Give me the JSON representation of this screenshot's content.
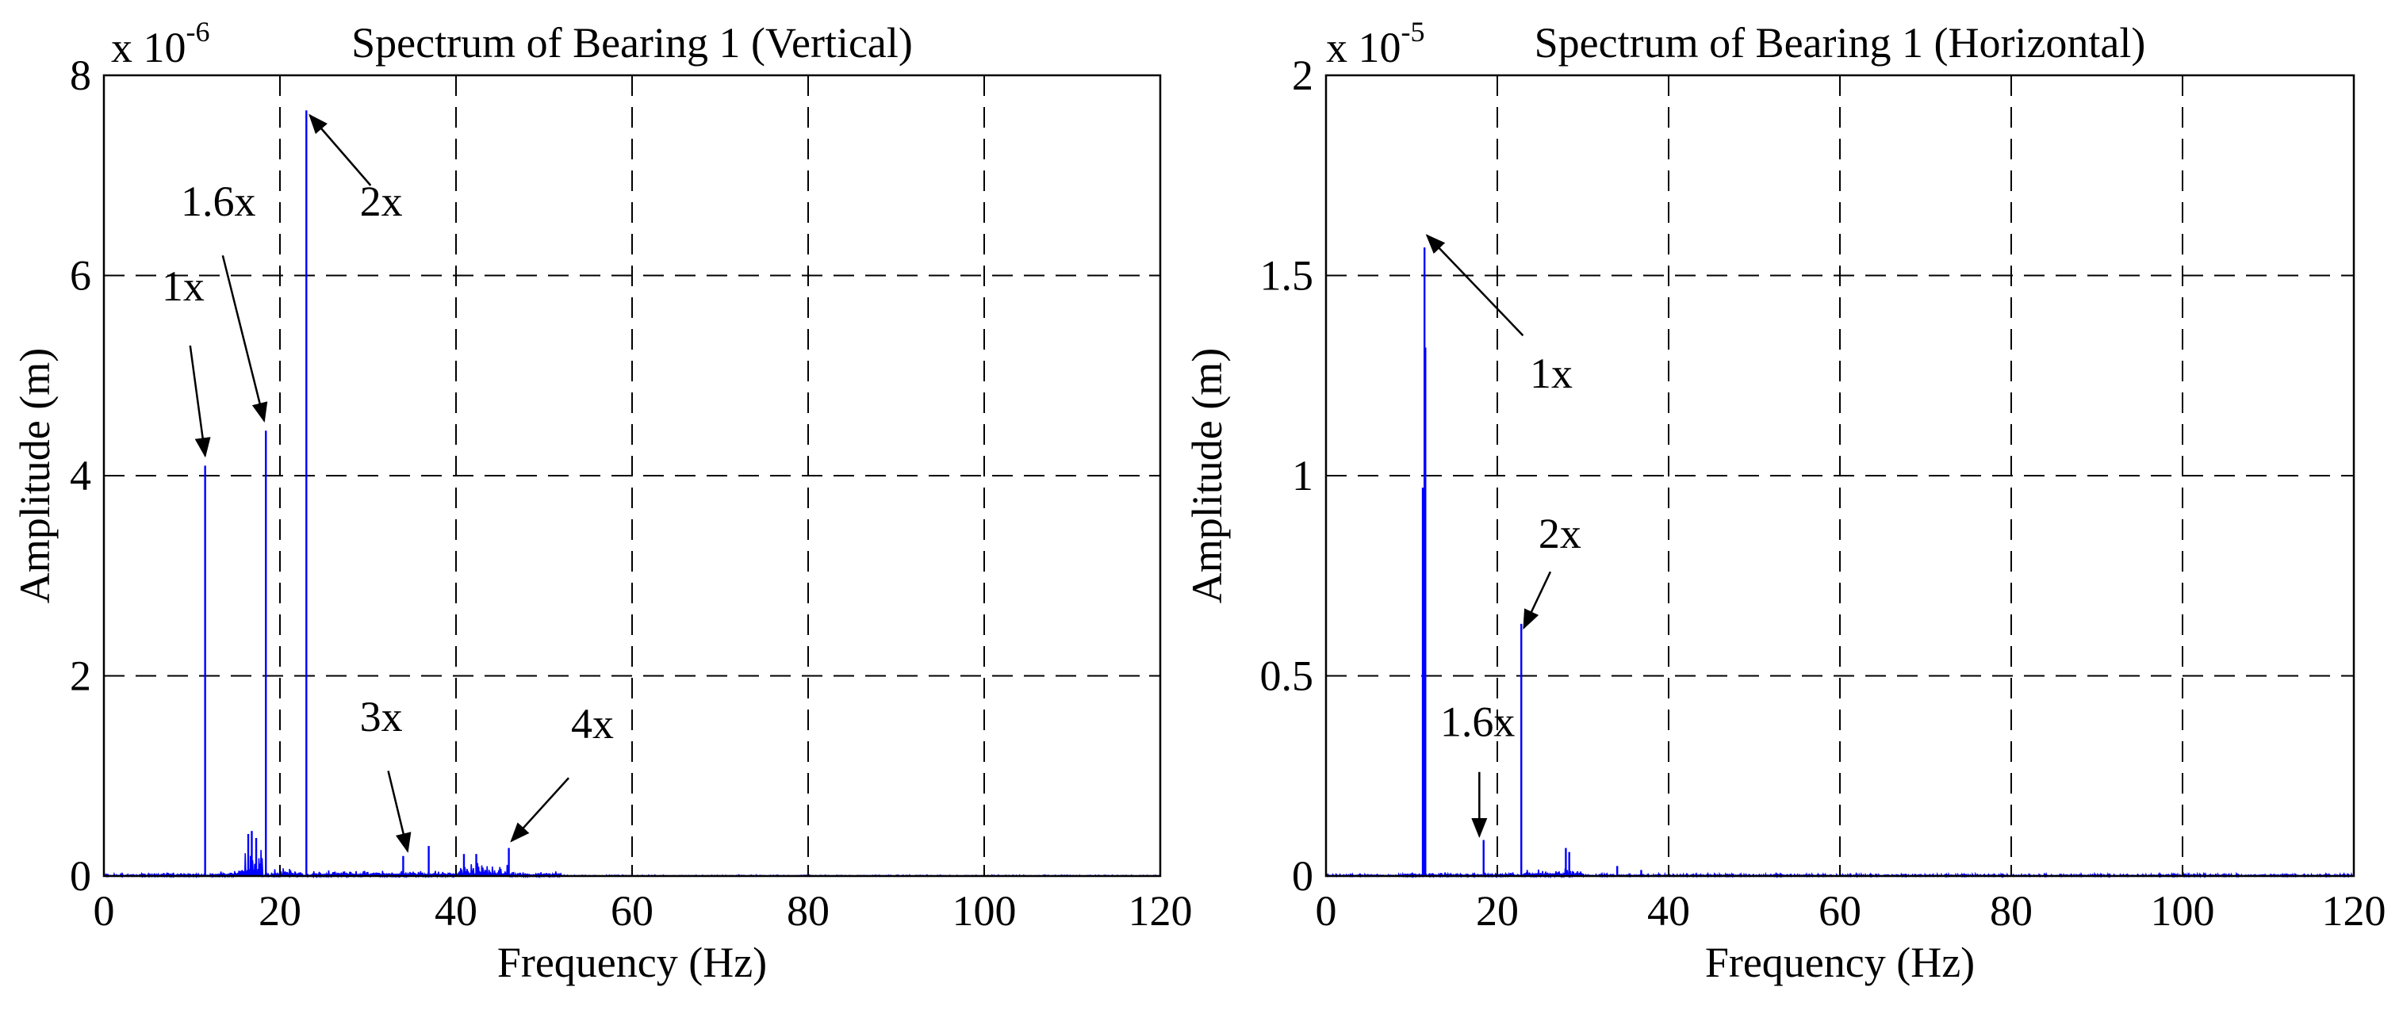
{
  "chart_data": [
    {
      "type": "line",
      "title": "Spectrum of Bearing 1 (Vertical)",
      "xlabel": "Frequency (Hz)",
      "ylabel": "Amplitude (m)",
      "multiplier_base": "x 10",
      "multiplier_exp": "-6",
      "xlim": [
        0,
        120
      ],
      "ylim": [
        0,
        8
      ],
      "grid": true,
      "xticks": [
        0,
        20,
        40,
        60,
        80,
        100,
        120
      ],
      "xtick_labels": [
        "0",
        "20",
        "40",
        "60",
        "80",
        "100",
        "120"
      ],
      "yticks": [
        0,
        2,
        4,
        6,
        8
      ],
      "ytick_labels": [
        "0",
        "2",
        "4",
        "6",
        "8"
      ],
      "series_color": "#0000ff",
      "peaks": [
        {
          "x": 11.5,
          "y": 4.1
        },
        {
          "x": 16.4,
          "y": 0.42
        },
        {
          "x": 16.8,
          "y": 0.45
        },
        {
          "x": 17.3,
          "y": 0.38
        },
        {
          "x": 18.4,
          "y": 4.45
        },
        {
          "x": 23.0,
          "y": 7.65
        },
        {
          "x": 34.0,
          "y": 0.2
        },
        {
          "x": 36.9,
          "y": 0.3
        },
        {
          "x": 40.9,
          "y": 0.22
        },
        {
          "x": 42.3,
          "y": 0.22
        },
        {
          "x": 46.0,
          "y": 0.28
        }
      ],
      "noise": [
        {
          "x0": 4,
          "x1": 11,
          "level": 0.04
        },
        {
          "x0": 12,
          "x1": 15.5,
          "level": 0.06
        },
        {
          "x0": 15.5,
          "x1": 18,
          "level": 0.3
        },
        {
          "x0": 19,
          "x1": 22.5,
          "level": 0.08
        },
        {
          "x0": 23.5,
          "x1": 30,
          "level": 0.07
        },
        {
          "x0": 30,
          "x1": 40,
          "level": 0.07
        },
        {
          "x0": 40,
          "x1": 46,
          "level": 0.15
        },
        {
          "x0": 46,
          "x1": 52,
          "level": 0.05
        },
        {
          "x0": 52,
          "x1": 120,
          "level": 0.01
        }
      ],
      "annotations": [
        {
          "text": "1x",
          "text_x": 9,
          "text_y": 5.75,
          "arrow_from": [
            9.8,
            5.3
          ],
          "arrow_to": [
            11.5,
            4.2
          ]
        },
        {
          "text": "1.6x",
          "text_x": 13,
          "text_y": 6.6,
          "arrow_from": [
            13.5,
            6.2
          ],
          "arrow_to": [
            18.2,
            4.55
          ]
        },
        {
          "text": "2x",
          "text_x": 31.5,
          "text_y": 6.6,
          "arrow_from": [
            30.3,
            6.9
          ],
          "arrow_to": [
            23.4,
            7.6
          ]
        },
        {
          "text": "3x",
          "text_x": 31.5,
          "text_y": 1.45,
          "arrow_from": [
            32.3,
            1.05
          ],
          "arrow_to": [
            34.5,
            0.25
          ]
        },
        {
          "text": "4x",
          "text_x": 55.5,
          "text_y": 1.38,
          "arrow_from": [
            52.8,
            0.98
          ],
          "arrow_to": [
            46.3,
            0.35
          ]
        }
      ]
    },
    {
      "type": "line",
      "title": "Spectrum of Bearing 1 (Horizontal)",
      "xlabel": "Frequency (Hz)",
      "ylabel": "Amplitude (m)",
      "multiplier_base": "x 10",
      "multiplier_exp": "-5",
      "xlim": [
        0,
        120
      ],
      "ylim": [
        0,
        2
      ],
      "grid": true,
      "xticks": [
        0,
        20,
        40,
        60,
        80,
        100,
        120
      ],
      "xtick_labels": [
        "0",
        "20",
        "40",
        "60",
        "80",
        "100",
        "120"
      ],
      "yticks": [
        0,
        0.5,
        1,
        1.5,
        2
      ],
      "ytick_labels": [
        "0",
        "0.5",
        "1",
        "1.5",
        "2"
      ],
      "series_color": "#0000ff",
      "peaks": [
        {
          "x": 11.3,
          "y": 0.97
        },
        {
          "x": 11.5,
          "y": 1.57
        },
        {
          "x": 11.6,
          "y": 1.32
        },
        {
          "x": 18.4,
          "y": 0.09
        },
        {
          "x": 22.8,
          "y": 0.63
        },
        {
          "x": 28.0,
          "y": 0.07
        },
        {
          "x": 28.4,
          "y": 0.06
        },
        {
          "x": 34.0,
          "y": 0.025
        },
        {
          "x": 36.8,
          "y": 0.015
        }
      ],
      "noise": [
        {
          "x0": 9,
          "x1": 11,
          "level": 0.01
        },
        {
          "x0": 12,
          "x1": 22,
          "level": 0.01
        },
        {
          "x0": 23,
          "x1": 30,
          "level": 0.02
        },
        {
          "x0": 30,
          "x1": 120,
          "level": 0.006
        }
      ],
      "annotations": [
        {
          "text": "1x",
          "text_x": 26.3,
          "text_y": 1.22,
          "arrow_from": [
            23,
            1.35
          ],
          "arrow_to": [
            11.8,
            1.6
          ]
        },
        {
          "text": "2x",
          "text_x": 27.3,
          "text_y": 0.82,
          "arrow_from": [
            26.2,
            0.76
          ],
          "arrow_to": [
            23.1,
            0.62
          ]
        },
        {
          "text": "1.6x",
          "text_x": 17.7,
          "text_y": 0.35,
          "arrow_from": [
            17.9,
            0.26
          ],
          "arrow_to": [
            17.9,
            0.1
          ]
        }
      ]
    }
  ]
}
